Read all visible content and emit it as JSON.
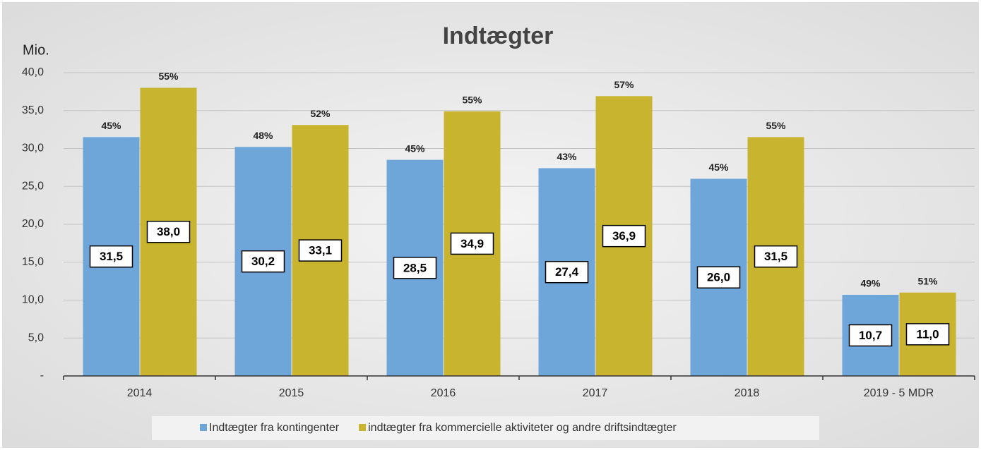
{
  "chart_data": {
    "type": "bar",
    "title": "Indtægter",
    "y_axis_label": "Mio.",
    "categories": [
      "2014",
      "2015",
      "2016",
      "2017",
      "2018",
      "2019 - 5 MDR"
    ],
    "series": [
      {
        "name": "Indtægter fra kontingenter",
        "color": "#6fa6da",
        "values": [
          31.5,
          30.2,
          28.5,
          27.4,
          26.0,
          10.7
        ],
        "value_labels": [
          "31,5",
          "30,2",
          "28,5",
          "27,4",
          "26,0",
          "10,7"
        ],
        "shares": [
          "45%",
          "48%",
          "45%",
          "43%",
          "45%",
          "49%"
        ]
      },
      {
        "name": "indtægter fra kommercielle aktiviteter og andre driftsindtægter",
        "color": "#c8b42e",
        "values": [
          38.0,
          33.1,
          34.9,
          36.9,
          31.5,
          11.0
        ],
        "value_labels": [
          "38,0",
          "33,1",
          "34,9",
          "36,9",
          "31,5",
          "11,0"
        ],
        "shares": [
          "55%",
          "52%",
          "55%",
          "57%",
          "55%",
          "51%"
        ]
      }
    ],
    "ylim": [
      0,
      40
    ],
    "yticks": [
      {
        "value": 0,
        "label": "-"
      },
      {
        "value": 5,
        "label": "5,0"
      },
      {
        "value": 10,
        "label": "10,0"
      },
      {
        "value": 15,
        "label": "15,0"
      },
      {
        "value": 20,
        "label": "20,0"
      },
      {
        "value": 25,
        "label": "25,0"
      },
      {
        "value": 30,
        "label": "30,0"
      },
      {
        "value": 35,
        "label": "35,0"
      },
      {
        "value": 40,
        "label": "40,0"
      }
    ],
    "grid": true,
    "legend": "bottom"
  }
}
